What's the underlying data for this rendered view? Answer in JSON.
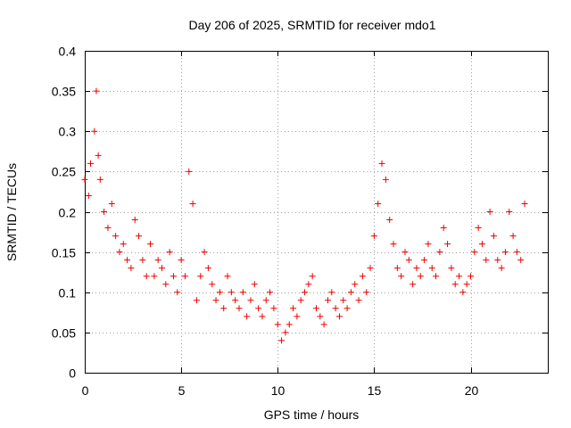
{
  "chart_data": {
    "type": "scatter",
    "title": "Day 206 of 2025, SRMTID for receiver mdo1",
    "xlabel": "GPS time / hours",
    "ylabel": "SRMTID / TECUs",
    "xlim": [
      0,
      24
    ],
    "ylim": [
      0,
      0.4
    ],
    "x_ticks": [
      0,
      5,
      10,
      15,
      20
    ],
    "x_tick_labels": [
      "0",
      "5",
      "10",
      "15",
      "20"
    ],
    "y_ticks": [
      0,
      0.05,
      0.1,
      0.15,
      0.2,
      0.25,
      0.3,
      0.35,
      0.4
    ],
    "y_tick_labels": [
      "0",
      "0.05",
      "0.1",
      "0.15",
      "0.2",
      "0.25",
      "0.3",
      "0.35",
      "0.4"
    ],
    "grid": true,
    "marker": "plus",
    "series": [
      {
        "name": "SRMTID",
        "color": "#ee0000",
        "x": [
          0.0,
          0.2,
          0.3,
          0.5,
          0.6,
          0.7,
          0.8,
          1.0,
          1.2,
          1.4,
          1.6,
          1.8,
          2.0,
          2.2,
          2.4,
          2.6,
          2.8,
          3.0,
          3.2,
          3.4,
          3.6,
          3.8,
          4.0,
          4.2,
          4.4,
          4.6,
          4.8,
          5.0,
          5.2,
          5.4,
          5.6,
          5.8,
          6.0,
          6.2,
          6.4,
          6.6,
          6.8,
          7.0,
          7.2,
          7.4,
          7.6,
          7.8,
          8.0,
          8.2,
          8.4,
          8.6,
          8.8,
          9.0,
          9.2,
          9.4,
          9.6,
          9.8,
          10.0,
          10.2,
          10.4,
          10.6,
          10.8,
          11.0,
          11.2,
          11.4,
          11.6,
          11.8,
          12.0,
          12.2,
          12.4,
          12.6,
          12.8,
          13.0,
          13.2,
          13.4,
          13.6,
          13.8,
          14.0,
          14.2,
          14.4,
          14.6,
          14.8,
          15.0,
          15.2,
          15.4,
          15.6,
          15.8,
          16.0,
          16.2,
          16.4,
          16.6,
          16.8,
          17.0,
          17.2,
          17.4,
          17.6,
          17.8,
          18.0,
          18.2,
          18.4,
          18.6,
          18.8,
          19.0,
          19.2,
          19.4,
          19.6,
          19.8,
          20.0,
          20.2,
          20.4,
          20.6,
          20.8,
          21.0,
          21.2,
          21.4,
          21.6,
          21.8,
          22.0,
          22.2,
          22.4,
          22.6,
          22.8
        ],
        "y": [
          0.24,
          0.22,
          0.26,
          0.3,
          0.35,
          0.27,
          0.24,
          0.2,
          0.18,
          0.21,
          0.17,
          0.15,
          0.16,
          0.14,
          0.13,
          0.19,
          0.17,
          0.14,
          0.12,
          0.16,
          0.12,
          0.14,
          0.13,
          0.11,
          0.15,
          0.12,
          0.1,
          0.14,
          0.12,
          0.25,
          0.21,
          0.09,
          0.12,
          0.15,
          0.13,
          0.11,
          0.09,
          0.1,
          0.08,
          0.12,
          0.1,
          0.09,
          0.08,
          0.1,
          0.07,
          0.09,
          0.11,
          0.08,
          0.07,
          0.09,
          0.1,
          0.08,
          0.06,
          0.04,
          0.05,
          0.06,
          0.08,
          0.07,
          0.09,
          0.1,
          0.11,
          0.12,
          0.08,
          0.07,
          0.06,
          0.09,
          0.1,
          0.08,
          0.07,
          0.09,
          0.08,
          0.1,
          0.11,
          0.09,
          0.12,
          0.1,
          0.13,
          0.17,
          0.21,
          0.26,
          0.24,
          0.19,
          0.16,
          0.13,
          0.12,
          0.15,
          0.14,
          0.11,
          0.13,
          0.12,
          0.14,
          0.16,
          0.13,
          0.12,
          0.15,
          0.18,
          0.16,
          0.13,
          0.11,
          0.12,
          0.1,
          0.11,
          0.12,
          0.15,
          0.18,
          0.16,
          0.14,
          0.2,
          0.17,
          0.14,
          0.13,
          0.15,
          0.2,
          0.17,
          0.15,
          0.14,
          0.21
        ]
      }
    ]
  }
}
